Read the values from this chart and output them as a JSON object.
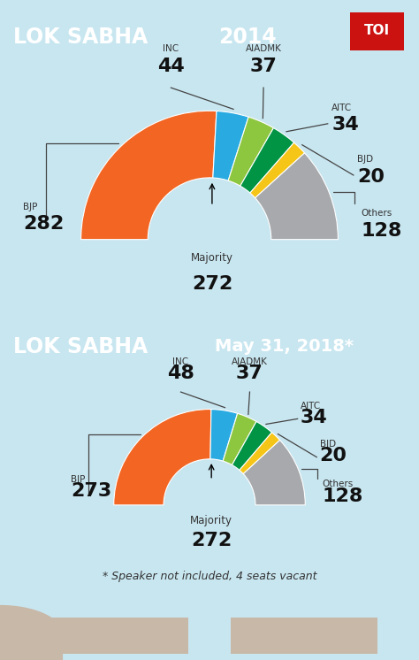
{
  "title": "LOK SABHA",
  "year1": "2014",
  "year2": "May 31, 2018*",
  "footnote": "* Speaker not included, 4 seats vacant",
  "bg_color": "#c8e6f0",
  "header_bg": "#111111",
  "orange_color": "#e8651a",
  "toi_red": "#cc1111",
  "chart1": {
    "parties": [
      "BJP",
      "INC",
      "AIADMK",
      "AITC",
      "BJD",
      "Others"
    ],
    "values": [
      282,
      44,
      37,
      34,
      20,
      128
    ],
    "colors": [
      "#f26522",
      "#29abe2",
      "#8dc63f",
      "#009444",
      "#f5c518",
      "#a7a9ac"
    ],
    "majority": 272
  },
  "chart2": {
    "parties": [
      "BJP",
      "INC",
      "AIADMK",
      "AITC",
      "BJD",
      "Others"
    ],
    "values": [
      273,
      48,
      37,
      34,
      20,
      128
    ],
    "colors": [
      "#f26522",
      "#29abe2",
      "#8dc63f",
      "#009444",
      "#f5c518",
      "#a7a9ac"
    ],
    "majority": 272
  }
}
